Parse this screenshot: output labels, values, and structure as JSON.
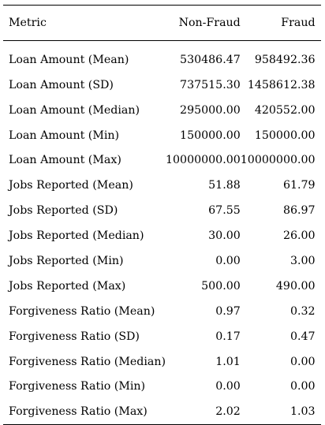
{
  "table": {
    "headers": [
      "Metric",
      "Non-Fraud",
      "Fraud"
    ],
    "rows": [
      [
        "Loan Amount (Mean)",
        "530486.47",
        "958492.36"
      ],
      [
        "Loan Amount (SD)",
        "737515.30",
        "1458612.38"
      ],
      [
        "Loan Amount (Median)",
        "295000.00",
        "420552.00"
      ],
      [
        "Loan Amount (Min)",
        "150000.00",
        "150000.00"
      ],
      [
        "Loan Amount (Max)",
        "10000000.00",
        "10000000.00"
      ],
      [
        "Jobs Reported (Mean)",
        "51.88",
        "61.79"
      ],
      [
        "Jobs Reported (SD)",
        "67.55",
        "86.97"
      ],
      [
        "Jobs Reported (Median)",
        "30.00",
        "26.00"
      ],
      [
        "Jobs Reported (Min)",
        "0.00",
        "3.00"
      ],
      [
        "Jobs Reported (Max)",
        "500.00",
        "490.00"
      ],
      [
        "Forgiveness Ratio (Mean)",
        "0.97",
        "0.32"
      ],
      [
        "Forgiveness Ratio (SD)",
        "0.17",
        "0.47"
      ],
      [
        "Forgiveness Ratio (Median)",
        "1.01",
        "0.00"
      ],
      [
        "Forgiveness Ratio (Min)",
        "0.00",
        "0.00"
      ],
      [
        "Forgiveness Ratio (Max)",
        "2.02",
        "1.03"
      ]
    ]
  }
}
